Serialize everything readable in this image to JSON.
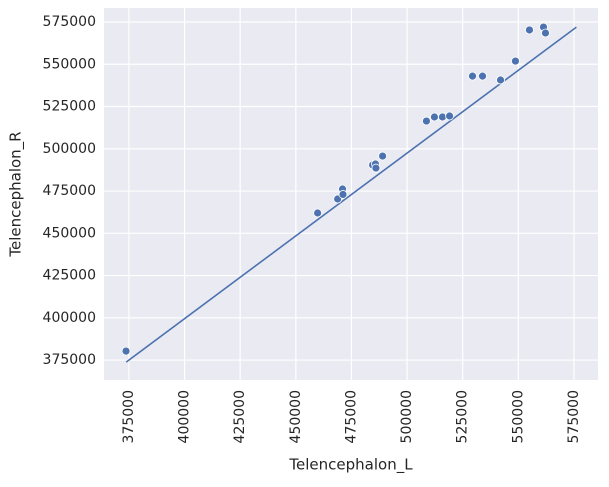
{
  "chart_data": {
    "type": "scatter",
    "x_label": "Telencephalon_L",
    "y_label": "Telencephalon_R",
    "xlim": [
      363800,
      585800
    ],
    "ylim": [
      363200,
      583300
    ],
    "xticks": [
      375000,
      400000,
      425000,
      450000,
      475000,
      500000,
      525000,
      550000,
      575000
    ],
    "yticks": [
      375000,
      400000,
      425000,
      450000,
      475000,
      500000,
      525000,
      550000,
      575000
    ],
    "grid": true,
    "background": "#eaeaf2",
    "series": [
      {
        "kind": "points",
        "color": "#4c72b0",
        "x": [
          373700,
          459800,
          468800,
          471000,
          471200,
          484500,
          485800,
          486000,
          489000,
          508700,
          512300,
          515900,
          519100,
          529400,
          533900,
          542000,
          548700,
          555000,
          561300,
          562200
        ],
        "values": [
          380300,
          462000,
          470300,
          476200,
          473000,
          490400,
          491000,
          488600,
          495700,
          516400,
          518800,
          518800,
          519400,
          543000,
          543000,
          540700,
          551900,
          570300,
          572000,
          568500
        ]
      },
      {
        "kind": "line",
        "color": "#4c72b0",
        "x": [
          373800,
          576100
        ],
        "values": [
          373800,
          572000
        ]
      }
    ]
  }
}
